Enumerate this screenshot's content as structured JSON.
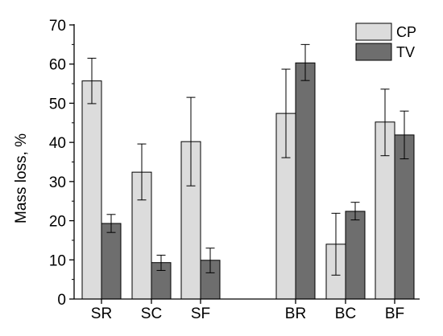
{
  "chart_data": {
    "type": "bar",
    "title": "",
    "xlabel": "",
    "ylabel": "Mass loss, %",
    "ylim": [
      0,
      70
    ],
    "yticks": [
      0,
      10,
      20,
      30,
      40,
      50,
      60,
      70
    ],
    "grid": false,
    "legend_position": "top-right",
    "categories": [
      "SR",
      "SC",
      "SF",
      "BR",
      "BC",
      "BF"
    ],
    "category_groups": [
      [
        "SR",
        "SC",
        "SF"
      ],
      [
        "BR",
        "BC",
        "BF"
      ]
    ],
    "series": [
      {
        "name": "CP",
        "color": "#dcdcdc",
        "values": [
          55.7,
          32.4,
          40.2,
          47.4,
          14.0,
          45.2
        ],
        "error_low": [
          49.9,
          25.3,
          28.9,
          36.1,
          6.1,
          36.6
        ],
        "error_high": [
          61.5,
          39.6,
          51.5,
          58.7,
          21.9,
          53.6
        ]
      },
      {
        "name": "TV",
        "color": "#6e6e6e",
        "values": [
          19.3,
          9.3,
          9.9,
          60.3,
          22.4,
          41.9
        ],
        "error_low": [
          17.0,
          7.3,
          6.7,
          55.8,
          20.2,
          35.8
        ],
        "error_high": [
          21.6,
          11.2,
          13.0,
          65.0,
          24.7,
          48.0
        ]
      }
    ]
  }
}
